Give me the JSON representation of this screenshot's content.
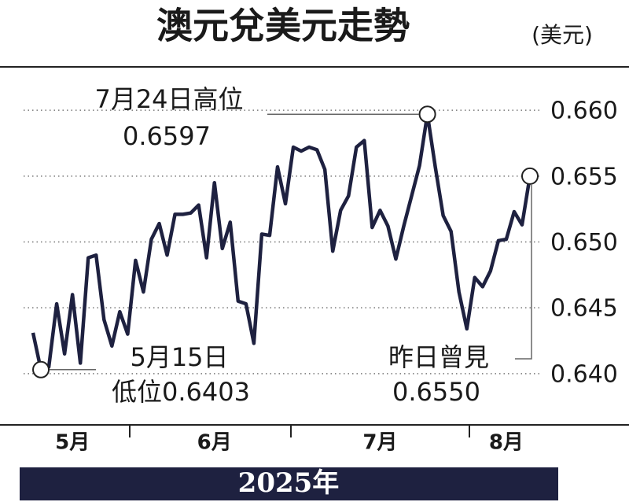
{
  "chart_data": {
    "type": "line",
    "title": "澳元兌美元走勢",
    "unit": "(美元)",
    "year": "2025年",
    "categories": [
      null,
      null,
      null,
      null,
      null,
      "5月",
      null,
      null,
      null,
      null,
      null,
      null,
      null,
      null,
      null,
      null,
      null,
      null,
      null,
      null,
      null,
      null,
      null,
      "6月",
      null,
      null,
      null,
      null,
      null,
      null,
      null,
      null,
      null,
      null,
      null,
      null,
      null,
      null,
      null,
      null,
      null,
      null,
      null,
      null,
      "7月",
      null,
      null,
      null,
      null,
      null,
      null,
      null,
      null,
      null,
      null,
      null,
      null,
      null,
      null,
      null,
      "8月",
      null,
      null,
      null
    ],
    "series": [
      {
        "name": "澳元兌美元",
        "color": "#1e2140",
        "values": [
          0.6431,
          0.6403,
          0.6405,
          0.6453,
          0.6415,
          0.646,
          0.6408,
          0.6488,
          0.649,
          0.6441,
          0.6421,
          0.6447,
          0.643,
          0.6486,
          0.6462,
          0.6502,
          0.6514,
          0.649,
          0.6521,
          0.6521,
          0.6522,
          0.6528,
          0.6488,
          0.6545,
          0.6495,
          0.6515,
          0.6455,
          0.6453,
          0.6423,
          0.6506,
          0.6505,
          0.6557,
          0.6529,
          0.6572,
          0.6569,
          0.6572,
          0.657,
          0.6555,
          0.6493,
          0.6524,
          0.6535,
          0.6572,
          0.6577,
          0.6511,
          0.6524,
          0.6512,
          0.6487,
          0.6512,
          0.6535,
          0.6558,
          0.6597,
          0.6557,
          0.652,
          0.6508,
          0.6462,
          0.6434,
          0.6473,
          0.6466,
          0.6478,
          0.6501,
          0.6502,
          0.6523,
          0.6513,
          0.655
        ]
      }
    ],
    "ylim": [
      0.6373,
      0.6627
    ],
    "yticks": [
      {
        "value": 0.64,
        "label": "0.640"
      },
      0.645,
      {
        "value": 0.65,
        "label": "0.650"
      },
      0.655,
      {
        "value": 0.66,
        "label": "0.660"
      }
    ],
    "grid": true,
    "annotations": {
      "high": [
        "7月24日高位",
        "0.6597"
      ],
      "low": [
        "5月15日",
        "低位0.6403"
      ],
      "last": [
        "昨日曾見",
        "0.6550"
      ]
    }
  }
}
